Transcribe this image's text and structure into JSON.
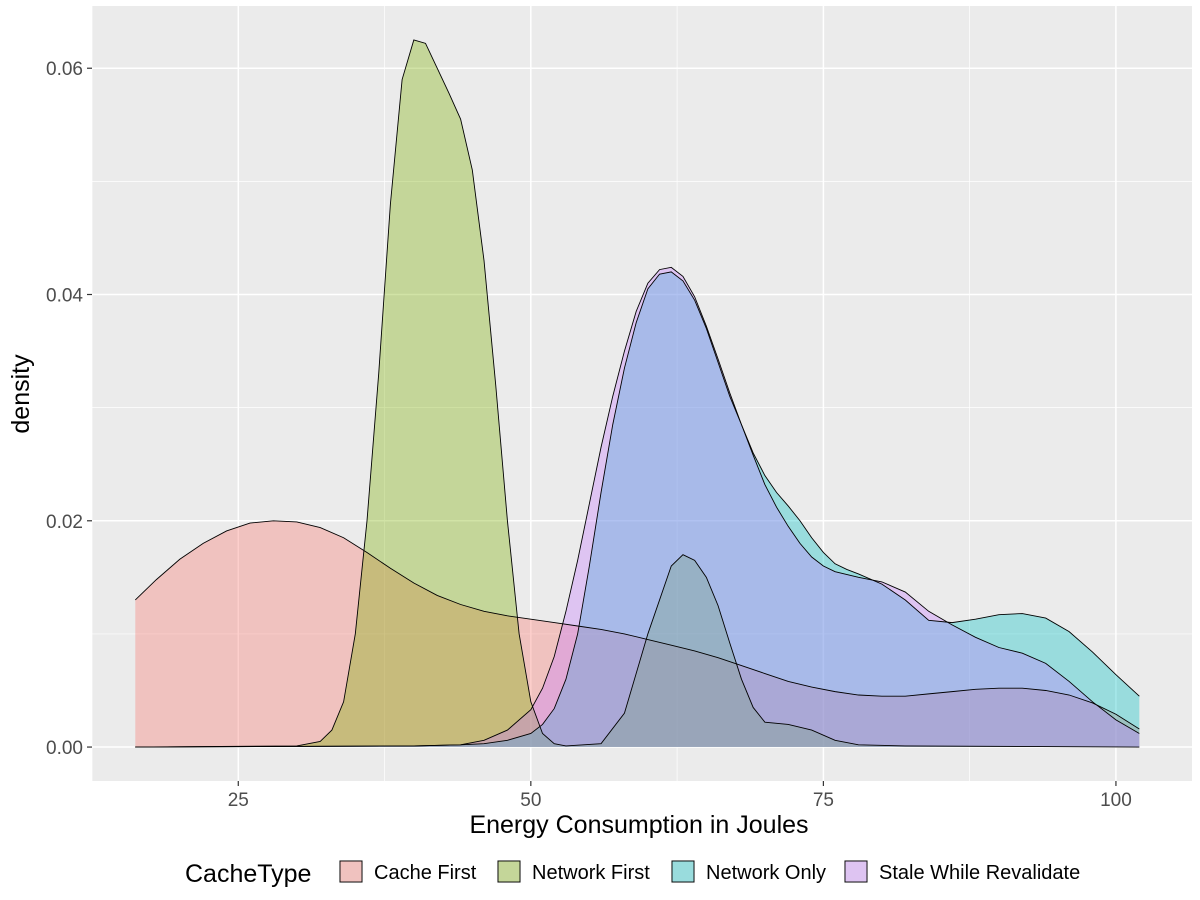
{
  "chart_data": {
    "type": "area",
    "xlabel": "Energy Consumption in Joules",
    "ylabel": "density",
    "xlim": [
      12.5,
      106.5
    ],
    "ylim": [
      -0.003,
      0.0655
    ],
    "x_ticks": [
      25,
      50,
      75,
      100
    ],
    "y_ticks": [
      0.0,
      0.02,
      0.04,
      0.06
    ],
    "x_tick_labels": [
      "25",
      "50",
      "75",
      "100"
    ],
    "y_tick_labels": [
      "0.00",
      "0.02",
      "0.04",
      "0.06"
    ],
    "grid": true,
    "background": "#EBEBEB",
    "fill_opacity": 0.35,
    "legend": {
      "title": "CacheType",
      "position": "bottom"
    },
    "series": [
      {
        "name": "Cache First",
        "color": "#F8766D",
        "points": [
          [
            16.2,
            0.013
          ],
          [
            18,
            0.0148
          ],
          [
            20,
            0.0166
          ],
          [
            22,
            0.018
          ],
          [
            24,
            0.0191
          ],
          [
            26,
            0.0198
          ],
          [
            28,
            0.02
          ],
          [
            30,
            0.0199
          ],
          [
            32,
            0.0194
          ],
          [
            34,
            0.0185
          ],
          [
            36,
            0.0172
          ],
          [
            38,
            0.0158
          ],
          [
            40,
            0.0145
          ],
          [
            42,
            0.0134
          ],
          [
            44,
            0.0126
          ],
          [
            46,
            0.012
          ],
          [
            48,
            0.0116
          ],
          [
            50,
            0.0113
          ],
          [
            52,
            0.011
          ],
          [
            54,
            0.0107
          ],
          [
            56,
            0.0104
          ],
          [
            58,
            0.01
          ],
          [
            60,
            0.0095
          ],
          [
            62,
            0.009
          ],
          [
            64,
            0.0085
          ],
          [
            66,
            0.0079
          ],
          [
            68,
            0.0072
          ],
          [
            70,
            0.0065
          ],
          [
            72,
            0.0058
          ],
          [
            74,
            0.0053
          ],
          [
            76,
            0.0049
          ],
          [
            78,
            0.0046
          ],
          [
            80,
            0.0045
          ],
          [
            82,
            0.0045
          ],
          [
            84,
            0.0047
          ],
          [
            86,
            0.0049
          ],
          [
            88,
            0.0051
          ],
          [
            90,
            0.0052
          ],
          [
            92,
            0.0052
          ],
          [
            94,
            0.005
          ],
          [
            96,
            0.0046
          ],
          [
            98,
            0.0039
          ],
          [
            100,
            0.0029
          ],
          [
            102,
            0.0016
          ]
        ]
      },
      {
        "name": "Network First",
        "color": "#7CAE00",
        "points": [
          [
            16.2,
            0
          ],
          [
            30,
            0.0001
          ],
          [
            32,
            0.0005
          ],
          [
            33,
            0.0015
          ],
          [
            34,
            0.004
          ],
          [
            35,
            0.01
          ],
          [
            36,
            0.02
          ],
          [
            37,
            0.033
          ],
          [
            38,
            0.048
          ],
          [
            39,
            0.059
          ],
          [
            40,
            0.0625
          ],
          [
            41,
            0.0622
          ],
          [
            42,
            0.06
          ],
          [
            43,
            0.0578
          ],
          [
            44,
            0.0555
          ],
          [
            45,
            0.051
          ],
          [
            46,
            0.043
          ],
          [
            47,
            0.032
          ],
          [
            48,
            0.02
          ],
          [
            49,
            0.01
          ],
          [
            50,
            0.004
          ],
          [
            51,
            0.0012
          ],
          [
            52,
            0.0003
          ],
          [
            53,
            0.0001
          ],
          [
            56,
            0.0003
          ],
          [
            58,
            0.003
          ],
          [
            60,
            0.01
          ],
          [
            62,
            0.016
          ],
          [
            63,
            0.017
          ],
          [
            64,
            0.0165
          ],
          [
            65,
            0.015
          ],
          [
            66,
            0.0125
          ],
          [
            67,
            0.0092
          ],
          [
            68,
            0.006
          ],
          [
            69,
            0.0035
          ],
          [
            70,
            0.0022
          ],
          [
            72,
            0.002
          ],
          [
            74,
            0.0015
          ],
          [
            76,
            0.0006
          ],
          [
            78,
            0.0002
          ],
          [
            82,
            0.0001
          ],
          [
            102,
            0
          ]
        ]
      },
      {
        "name": "Network Only",
        "color": "#00BFC4",
        "points": [
          [
            16.2,
            0
          ],
          [
            40,
            0.0001
          ],
          [
            44,
            0.0002
          ],
          [
            46,
            0.0003
          ],
          [
            48,
            0.0006
          ],
          [
            50,
            0.0012
          ],
          [
            51,
            0.002
          ],
          [
            52,
            0.0034
          ],
          [
            53,
            0.006
          ],
          [
            54,
            0.01
          ],
          [
            55,
            0.016
          ],
          [
            56,
            0.0225
          ],
          [
            57,
            0.0285
          ],
          [
            58,
            0.0335
          ],
          [
            59,
            0.0375
          ],
          [
            60,
            0.0405
          ],
          [
            61,
            0.0418
          ],
          [
            62,
            0.042
          ],
          [
            63,
            0.0412
          ],
          [
            64,
            0.0395
          ],
          [
            65,
            0.037
          ],
          [
            66,
            0.034
          ],
          [
            67,
            0.031
          ],
          [
            68,
            0.0285
          ],
          [
            69,
            0.026
          ],
          [
            70,
            0.024
          ],
          [
            71,
            0.0225
          ],
          [
            72,
            0.0213
          ],
          [
            73,
            0.02
          ],
          [
            74,
            0.0185
          ],
          [
            75,
            0.0172
          ],
          [
            76,
            0.0162
          ],
          [
            77,
            0.0157
          ],
          [
            78,
            0.0153
          ],
          [
            80,
            0.0144
          ],
          [
            82,
            0.013
          ],
          [
            84,
            0.0112
          ],
          [
            86,
            0.011
          ],
          [
            88,
            0.0113
          ],
          [
            90,
            0.0117
          ],
          [
            92,
            0.0118
          ],
          [
            94,
            0.0114
          ],
          [
            96,
            0.0102
          ],
          [
            98,
            0.0084
          ],
          [
            100,
            0.0064
          ],
          [
            102,
            0.0045
          ]
        ]
      },
      {
        "name": "Stale While Revalidate",
        "color": "#C77CFF",
        "points": [
          [
            16.2,
            0
          ],
          [
            40,
            0.0001
          ],
          [
            44,
            0.0002
          ],
          [
            46,
            0.0006
          ],
          [
            48,
            0.0015
          ],
          [
            50,
            0.0033
          ],
          [
            51,
            0.0052
          ],
          [
            52,
            0.008
          ],
          [
            53,
            0.012
          ],
          [
            54,
            0.0165
          ],
          [
            55,
            0.0215
          ],
          [
            56,
            0.0265
          ],
          [
            57,
            0.031
          ],
          [
            58,
            0.035
          ],
          [
            59,
            0.0385
          ],
          [
            60,
            0.041
          ],
          [
            61,
            0.0422
          ],
          [
            62,
            0.0424
          ],
          [
            63,
            0.0416
          ],
          [
            64,
            0.0398
          ],
          [
            65,
            0.0372
          ],
          [
            66,
            0.0343
          ],
          [
            67,
            0.0313
          ],
          [
            68,
            0.0285
          ],
          [
            69,
            0.0258
          ],
          [
            70,
            0.0232
          ],
          [
            71,
            0.0212
          ],
          [
            72,
            0.0195
          ],
          [
            73,
            0.018
          ],
          [
            74,
            0.0168
          ],
          [
            75,
            0.016
          ],
          [
            76,
            0.0155
          ],
          [
            78,
            0.015
          ],
          [
            80,
            0.0146
          ],
          [
            82,
            0.0137
          ],
          [
            84,
            0.012
          ],
          [
            86,
            0.0108
          ],
          [
            88,
            0.0097
          ],
          [
            90,
            0.0088
          ],
          [
            92,
            0.0083
          ],
          [
            94,
            0.0074
          ],
          [
            96,
            0.0058
          ],
          [
            98,
            0.004
          ],
          [
            100,
            0.0024
          ],
          [
            102,
            0.0012
          ]
        ]
      }
    ]
  }
}
